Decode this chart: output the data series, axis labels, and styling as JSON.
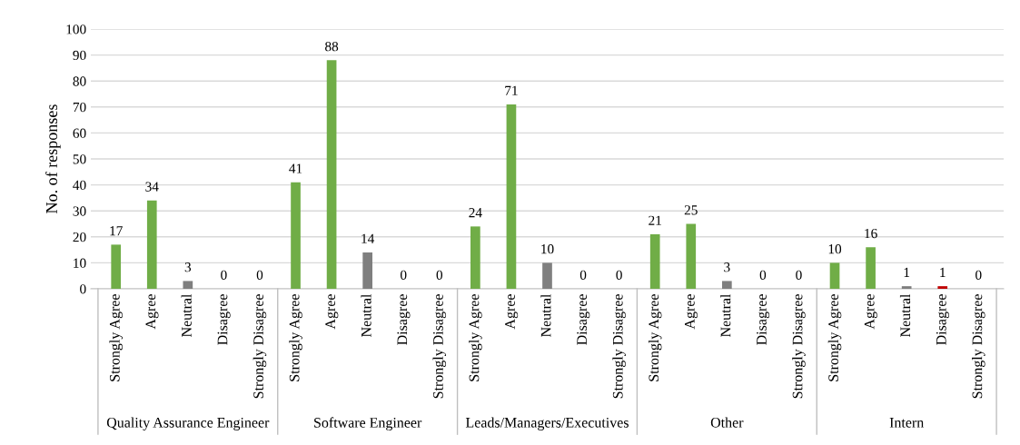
{
  "chart_data": {
    "type": "bar",
    "ylabel": "No. of responses",
    "categories": [
      "Strongly Agree",
      "Agree",
      "Neutral",
      "Disagree",
      "Strongly Disagree",
      "Strongly Agree",
      "Agree",
      "Neutral",
      "Disagree",
      "Strongly Disagree",
      "Strongly Agree",
      "Agree",
      "Neutral",
      "Disagree",
      "Strongly Disagree",
      "Strongly Agree",
      "Agree",
      "Neutral",
      "Disagree",
      "Strongly Disagree",
      "Strongly Agree",
      "Agree",
      "Neutral",
      "Disagree",
      "Strongly Disagree"
    ],
    "values": [
      17,
      34,
      3,
      0,
      0,
      41,
      88,
      14,
      0,
      0,
      24,
      71,
      10,
      0,
      0,
      21,
      25,
      3,
      0,
      0,
      10,
      16,
      1,
      1,
      0
    ],
    "colors": [
      "#70ad47",
      "#70ad47",
      "#7f7f7f",
      "#c00000",
      "#c00000",
      "#70ad47",
      "#70ad47",
      "#7f7f7f",
      "#c00000",
      "#c00000",
      "#70ad47",
      "#70ad47",
      "#7f7f7f",
      "#c00000",
      "#c00000",
      "#70ad47",
      "#70ad47",
      "#7f7f7f",
      "#c00000",
      "#c00000",
      "#70ad47",
      "#70ad47",
      "#7f7f7f",
      "#c00000",
      "#c00000"
    ],
    "annotations": [
      "Quality Assurance Engineer",
      "Software Engineer",
      "Leads/Managers/Executives",
      "Other",
      "Intern"
    ],
    "ylim": [
      0,
      100
    ],
    "yticks": [
      0,
      10,
      20,
      30,
      40,
      50,
      60,
      70,
      80,
      90,
      100
    ],
    "grid": "y",
    "data_labels": true,
    "legend": false
  }
}
